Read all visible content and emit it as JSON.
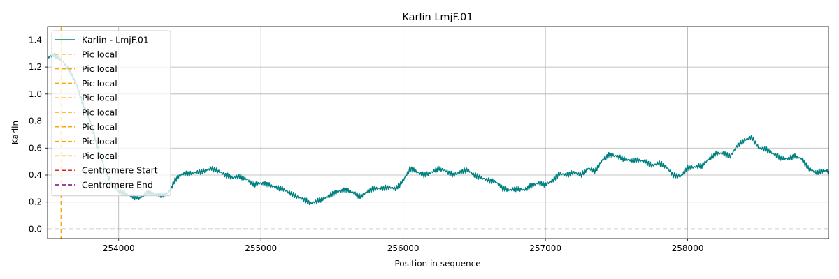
{
  "chart_data": {
    "type": "line",
    "title": "Karlin LmjF.01",
    "xlabel": "Position in sequence",
    "ylabel": "Karlin",
    "xlim": [
      253500,
      258990
    ],
    "ylim": [
      -0.07,
      1.5
    ],
    "xticks": [
      254000,
      255000,
      256000,
      257000,
      258000
    ],
    "xtick_labels": [
      "254000",
      "255000",
      "256000",
      "257000",
      "258000"
    ],
    "yticks": [
      0.0,
      0.2,
      0.4,
      0.6,
      0.8,
      1.0,
      1.2,
      1.4
    ],
    "ytick_labels": [
      "0.0",
      "0.2",
      "0.4",
      "0.6",
      "0.8",
      "1.0",
      "1.2",
      "1.4"
    ],
    "grid": true,
    "legend_position": "upper-left",
    "colors": {
      "main": "#008080",
      "pic": "#ffa500",
      "centro_start": "#d62728",
      "centro_end": "#800080",
      "baseline": "#808080"
    },
    "series": [
      {
        "name": "Karlin - LmjF.01",
        "x": [
          253500,
          253550,
          253600,
          253650,
          253700,
          253750,
          253800,
          253850,
          253900,
          253950,
          254000,
          254050,
          254100,
          254150,
          254200,
          254250,
          254300,
          254350,
          254400,
          254450,
          254500,
          254550,
          254600,
          254650,
          254700,
          254750,
          254800,
          254850,
          254900,
          254950,
          255000,
          255050,
          255100,
          255150,
          255200,
          255250,
          255300,
          255350,
          255400,
          255450,
          255500,
          255550,
          255600,
          255650,
          255700,
          255750,
          255800,
          255850,
          255900,
          255950,
          256000,
          256050,
          256100,
          256150,
          256200,
          256250,
          256300,
          256350,
          256400,
          256450,
          256500,
          256550,
          256600,
          256650,
          256700,
          256750,
          256800,
          256850,
          256900,
          256950,
          257000,
          257050,
          257100,
          257150,
          257200,
          257250,
          257300,
          257350,
          257400,
          257450,
          257500,
          257550,
          257600,
          257650,
          257700,
          257750,
          257800,
          257850,
          257900,
          257950,
          258000,
          258050,
          258100,
          258150,
          258200,
          258250,
          258300,
          258350,
          258400,
          258450,
          258500,
          258550,
          258600,
          258650,
          258700,
          258750,
          258800,
          258850,
          258900,
          258950,
          258990
        ],
        "values": [
          1.27,
          1.29,
          1.25,
          1.18,
          1.08,
          0.92,
          0.8,
          0.62,
          0.45,
          0.33,
          0.28,
          0.26,
          0.24,
          0.23,
          0.27,
          0.26,
          0.25,
          0.27,
          0.37,
          0.41,
          0.41,
          0.42,
          0.43,
          0.45,
          0.43,
          0.4,
          0.38,
          0.39,
          0.37,
          0.33,
          0.34,
          0.33,
          0.31,
          0.3,
          0.27,
          0.24,
          0.22,
          0.19,
          0.21,
          0.23,
          0.26,
          0.28,
          0.29,
          0.27,
          0.24,
          0.28,
          0.3,
          0.3,
          0.31,
          0.3,
          0.36,
          0.45,
          0.42,
          0.4,
          0.42,
          0.45,
          0.43,
          0.4,
          0.42,
          0.44,
          0.4,
          0.38,
          0.36,
          0.35,
          0.3,
          0.29,
          0.3,
          0.29,
          0.32,
          0.34,
          0.33,
          0.36,
          0.41,
          0.4,
          0.42,
          0.4,
          0.45,
          0.43,
          0.51,
          0.55,
          0.54,
          0.52,
          0.51,
          0.51,
          0.5,
          0.47,
          0.49,
          0.46,
          0.4,
          0.39,
          0.45,
          0.46,
          0.47,
          0.52,
          0.56,
          0.56,
          0.54,
          0.62,
          0.66,
          0.68,
          0.6,
          0.59,
          0.56,
          0.53,
          0.52,
          0.54,
          0.52,
          0.45,
          0.42,
          0.43,
          0.43
        ]
      }
    ],
    "pic_local_x": [
      253595
    ],
    "legend_entries": [
      {
        "label": "Karlin - LmjF.01",
        "style": "solid",
        "color": "#008080"
      },
      {
        "label": "Pic local",
        "style": "dashed",
        "color": "#ffa500"
      },
      {
        "label": "Pic local",
        "style": "dashed",
        "color": "#ffa500"
      },
      {
        "label": "Pic local",
        "style": "dashed",
        "color": "#ffa500"
      },
      {
        "label": "Pic local",
        "style": "dashed",
        "color": "#ffa500"
      },
      {
        "label": "Pic local",
        "style": "dashed",
        "color": "#ffa500"
      },
      {
        "label": "Pic local",
        "style": "dashed",
        "color": "#ffa500"
      },
      {
        "label": "Pic local",
        "style": "dashed",
        "color": "#ffa500"
      },
      {
        "label": "Pic local",
        "style": "dashed",
        "color": "#ffa500"
      },
      {
        "label": "Centromere Start",
        "style": "dashed",
        "color": "#d62728"
      },
      {
        "label": "Centromere End",
        "style": "dashed",
        "color": "#800080"
      }
    ]
  }
}
